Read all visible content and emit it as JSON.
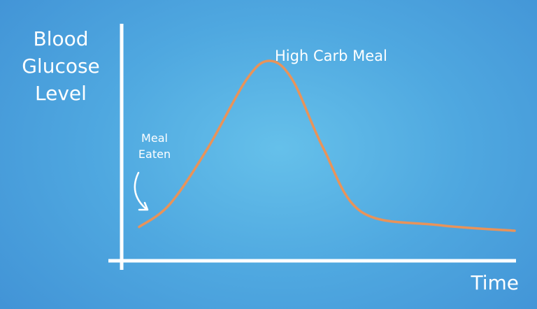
{
  "chart_data": {
    "type": "line",
    "title": "",
    "xlabel": "Time",
    "ylabel_lines": [
      "Blood",
      "Glucose",
      "Level"
    ],
    "ylim": [
      0,
      10
    ],
    "grid": false,
    "series": [
      {
        "name": "High Carb Meal",
        "color": "#e8935a",
        "points": [
          [
            0.2,
            0.2
          ],
          [
            1.0,
            1.4
          ],
          [
            2.0,
            4.4
          ],
          [
            3.0,
            8.0
          ],
          [
            3.6,
            9.0
          ],
          [
            4.2,
            8.0
          ],
          [
            5.0,
            4.4
          ],
          [
            6.0,
            1.0
          ],
          [
            8.0,
            0.3
          ],
          [
            10.0,
            0.0
          ]
        ]
      }
    ],
    "annotations": [
      {
        "text_lines": [
          "Meal",
          "Eaten"
        ],
        "arrow": "curved"
      }
    ]
  },
  "colors": {
    "background_center": "#65c0ea",
    "background_edge": "#3f8fd4",
    "axis": "#ffffff",
    "text": "#ffffff"
  }
}
